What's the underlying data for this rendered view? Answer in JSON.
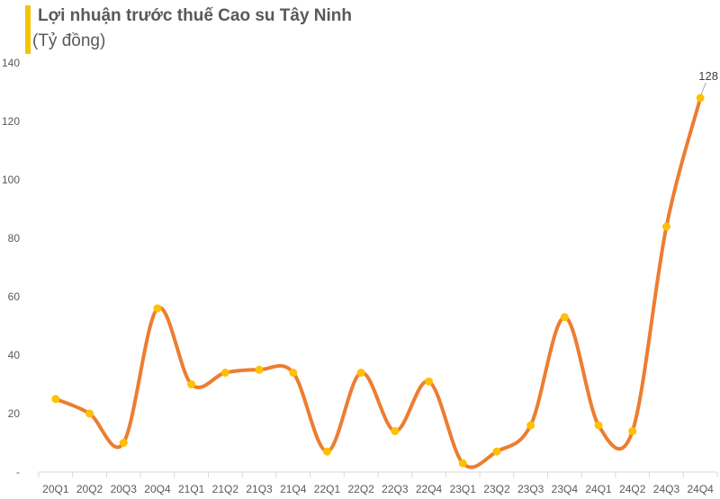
{
  "header": {
    "title": "Lợi nhuận trước thuế Cao su Tây Ninh",
    "subtitle": "(Tỷ đồng)"
  },
  "colors": {
    "accent_bar": "#f5c400",
    "line": "#ed7d31",
    "marker": "#ffc000",
    "axis": "#d9d9d9"
  },
  "chart_data": {
    "type": "line",
    "smooth": true,
    "categories": [
      "20Q1",
      "20Q2",
      "20Q3",
      "20Q4",
      "21Q1",
      "21Q2",
      "21Q3",
      "21Q4",
      "22Q1",
      "22Q2",
      "22Q3",
      "22Q4",
      "23Q1",
      "23Q2",
      "23Q3",
      "23Q4",
      "24Q1",
      "24Q2",
      "24Q3",
      "24Q4"
    ],
    "series": [
      {
        "values": [
          25,
          20,
          10,
          56,
          30,
          34,
          35,
          34,
          7,
          34,
          14,
          31,
          3,
          7,
          16,
          53,
          16,
          14,
          84,
          128
        ]
      }
    ],
    "y_ticks": [
      "-",
      "20",
      "40",
      "60",
      "80",
      "100",
      "120",
      "140"
    ],
    "ylim": [
      0,
      140
    ],
    "grid": false,
    "annotations": [
      {
        "category": "24Q4",
        "text": "128"
      }
    ]
  }
}
